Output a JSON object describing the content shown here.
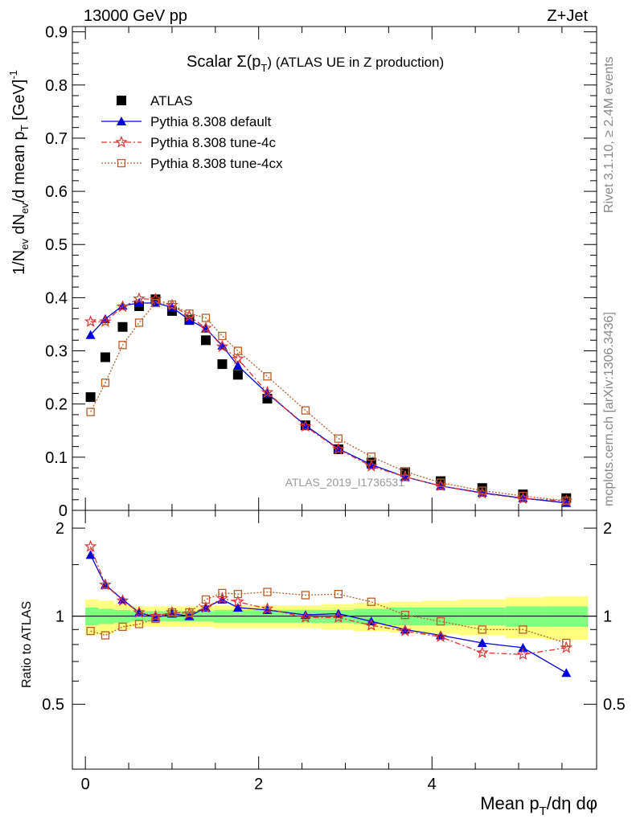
{
  "header": {
    "energy_label": "13000 GeV pp",
    "process_label": "Z+Jet",
    "plot_title": "Scalar Σ(p",
    "plot_title_sub": "T",
    "plot_title_tail": ") (ATLAS UE in Z production)",
    "watermark": "ATLAS_2019_I1736531"
  },
  "side_notes": {
    "rivet": "Rivet 3.1.10, ≥ 2.4M events",
    "mcplots": "mcplots.cern.ch [arXiv:1306.3436]"
  },
  "colors": {
    "data": "#000000",
    "default": "#0000dd",
    "tune4c": "#dd3333",
    "tune4cx": "#b85c2a",
    "band_inner": "#80ff80",
    "band_outer": "#ffff80"
  },
  "chart_data": [
    {
      "type": "scatter",
      "panel": "main",
      "ylabel": "1/Nev dNev/d mean pT [GeV]-1",
      "ylabel_parts": {
        "a": "1/N",
        "a_sub": "ev",
        "b": " dN",
        "b_sub": "ev",
        "c": "/d mean p",
        "c_sub": "T",
        "d": " [GeV]",
        "d_sup": "-1"
      },
      "xlim": [
        -0.15,
        5.9
      ],
      "ylim": [
        0,
        0.91
      ],
      "yticks": [
        0,
        0.1,
        0.2,
        0.3,
        0.4,
        0.5,
        0.6,
        0.7,
        0.8,
        0.9
      ],
      "ytick_labels": [
        "0",
        "0.1",
        "0.2",
        "0.3",
        "0.4",
        "0.5",
        "0.6",
        "0.7",
        "0.8",
        "0.9"
      ],
      "xticks": [
        0,
        2,
        4
      ],
      "x": [
        0.06,
        0.23,
        0.43,
        0.62,
        0.81,
        1.0,
        1.2,
        1.39,
        1.58,
        1.76,
        2.1,
        2.54,
        2.92,
        3.3,
        3.69,
        4.1,
        4.58,
        5.05,
        5.55
      ],
      "series": [
        {
          "name": "ATLAS",
          "key": "data",
          "marker": "square",
          "values": [
            0.213,
            0.288,
            0.345,
            0.384,
            0.397,
            0.375,
            0.358,
            0.32,
            0.275,
            0.255,
            0.21,
            0.16,
            0.115,
            0.09,
            0.072,
            0.055,
            0.042,
            0.03,
            0.023
          ]
        },
        {
          "name": "Pythia 8.308 default",
          "key": "default",
          "marker": "triangle",
          "line": "solid",
          "values": [
            0.33,
            0.36,
            0.385,
            0.39,
            0.39,
            0.382,
            0.358,
            0.342,
            0.31,
            0.272,
            0.22,
            0.16,
            0.116,
            0.086,
            0.063,
            0.046,
            0.033,
            0.023,
            0.014
          ]
        },
        {
          "name": "Pythia 8.308 tune-4c",
          "key": "tune4c",
          "marker": "star",
          "line": "dashdot",
          "values": [
            0.355,
            0.355,
            0.383,
            0.398,
            0.397,
            0.386,
            0.365,
            0.343,
            0.308,
            0.285,
            0.222,
            0.158,
            0.115,
            0.083,
            0.063,
            0.046,
            0.032,
            0.022,
            0.018
          ]
        },
        {
          "name": "Pythia 8.308 tune-4cx",
          "key": "tune4cx",
          "marker": "open-square",
          "line": "dotted",
          "values": [
            0.185,
            0.24,
            0.311,
            0.353,
            0.39,
            0.387,
            0.37,
            0.362,
            0.328,
            0.3,
            0.252,
            0.188,
            0.135,
            0.101,
            0.073,
            0.052,
            0.037,
            0.027,
            0.018
          ]
        }
      ]
    },
    {
      "type": "line",
      "panel": "ratio",
      "xlabel": "Mean pT/dη dφ",
      "xlabel_parts": {
        "a": "Mean p",
        "a_sub": "T",
        "b": "/dη dφ"
      },
      "ylabel": "Ratio to ATLAS",
      "xlim": [
        -0.15,
        5.9
      ],
      "ylim": [
        0.3,
        2.3
      ],
      "yticks": [
        0.5,
        1,
        2
      ],
      "ytick_labels": [
        "0.5",
        "1",
        "2"
      ],
      "xticks": [
        0,
        2,
        4
      ],
      "xtick_labels": [
        "0",
        "2",
        "4"
      ],
      "x": [
        0.06,
        0.23,
        0.43,
        0.62,
        0.81,
        1.0,
        1.2,
        1.39,
        1.58,
        1.76,
        2.1,
        2.54,
        2.92,
        3.3,
        3.69,
        4.1,
        4.58,
        5.05,
        5.55
      ],
      "band": {
        "edges": [
          -0.0,
          0.15,
          0.33,
          0.52,
          0.71,
          0.9,
          1.1,
          1.3,
          1.48,
          1.67,
          1.86,
          2.35,
          2.73,
          3.1,
          3.5,
          3.9,
          4.3,
          4.85,
          5.3,
          5.8
        ],
        "inner": [
          0.07,
          0.06,
          0.05,
          0.04,
          0.04,
          0.04,
          0.04,
          0.04,
          0.05,
          0.05,
          0.05,
          0.05,
          0.05,
          0.06,
          0.07,
          0.07,
          0.07,
          0.08,
          0.08
        ],
        "outer": [
          0.14,
          0.13,
          0.1,
          0.08,
          0.08,
          0.08,
          0.08,
          0.08,
          0.09,
          0.09,
          0.09,
          0.09,
          0.1,
          0.11,
          0.12,
          0.13,
          0.14,
          0.16,
          0.17
        ]
      },
      "series": [
        {
          "name": "Pythia 8.308 default",
          "key": "default",
          "marker": "triangle",
          "line": "solid",
          "values": [
            1.62,
            1.28,
            1.14,
            1.03,
            0.99,
            1.02,
            1.0,
            1.07,
            1.14,
            1.07,
            1.05,
            1.01,
            1.02,
            0.96,
            0.9,
            0.86,
            0.81,
            0.78,
            0.64
          ]
        },
        {
          "name": "Pythia 8.308 tune-4c",
          "key": "tune4c",
          "marker": "star",
          "line": "dashdot",
          "values": [
            1.73,
            1.28,
            1.13,
            1.03,
            1.0,
            1.03,
            1.02,
            1.07,
            1.15,
            1.12,
            1.06,
            0.99,
            0.99,
            0.93,
            0.89,
            0.85,
            0.75,
            0.74,
            0.78
          ]
        },
        {
          "name": "Pythia 8.308 tune-4cx",
          "key": "tune4cx",
          "marker": "open-square",
          "line": "dotted",
          "values": [
            0.89,
            0.86,
            0.92,
            0.94,
            0.98,
            1.03,
            1.03,
            1.14,
            1.2,
            1.19,
            1.21,
            1.18,
            1.19,
            1.12,
            1.01,
            0.96,
            0.9,
            0.9,
            0.81
          ]
        }
      ]
    }
  ]
}
